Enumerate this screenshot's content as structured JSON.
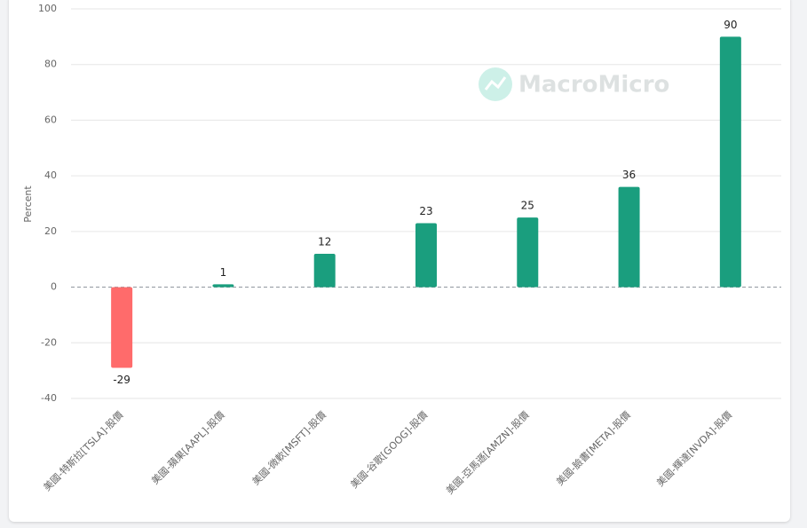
{
  "chart_data": {
    "type": "bar",
    "y_label": "Percent",
    "watermark": "MacroMicro",
    "categories": [
      "美國-特斯拉[TSLA]-股價",
      "美國-蘋果[AAPL]-股價",
      "美國-微軟[MSFT]-股價",
      "美國-谷歌[GOOG]-股價",
      "美國-亞馬遜[AMZN]-股價",
      "美國-臉書[META]-股價",
      "美國-輝達[NVDA]-股價"
    ],
    "values": [
      -29,
      1,
      12,
      23,
      25,
      36,
      90
    ],
    "color": "#1a9e7e",
    "negative_color": "#ff6b6b",
    "ylim": [
      -40,
      100
    ],
    "yticks": [
      -40,
      -20,
      0,
      20,
      40,
      60,
      80,
      100
    ],
    "grid": true
  }
}
